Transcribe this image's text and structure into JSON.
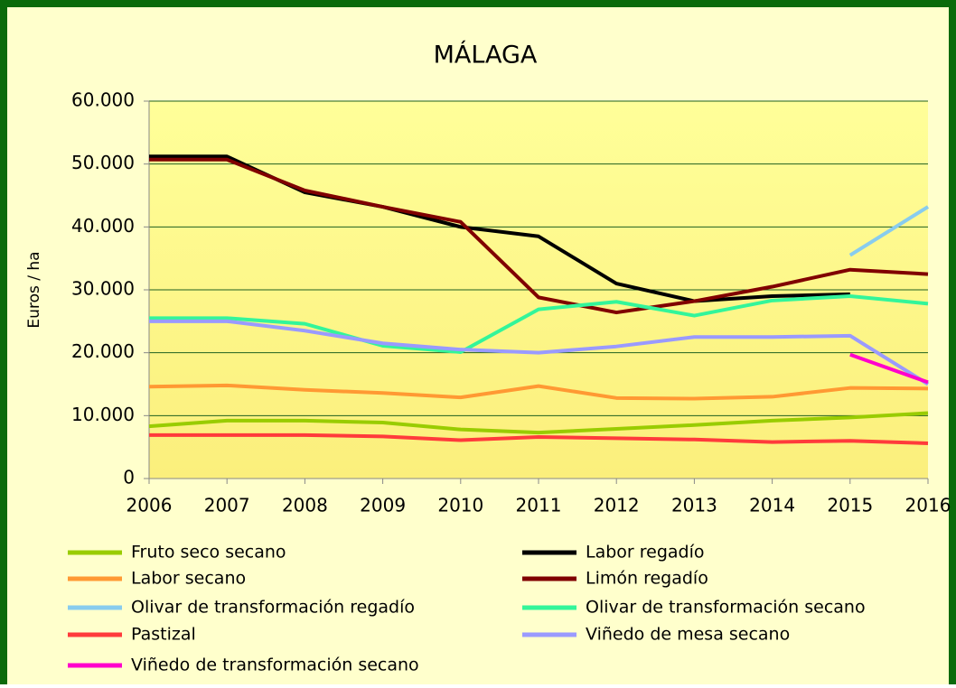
{
  "chart_data": {
    "type": "line",
    "title": "MÁLAGA",
    "ylabel": "Euros / ha",
    "x": [
      2006,
      2007,
      2008,
      2009,
      2010,
      2011,
      2012,
      2013,
      2014,
      2015,
      2016
    ],
    "xlim": [
      2006,
      2016
    ],
    "xticks": [
      2006,
      2007,
      2008,
      2009,
      2010,
      2011,
      2012,
      2013,
      2014,
      2015,
      2016
    ],
    "ylim": [
      0,
      60000
    ],
    "yticks": [
      0,
      {
        "value": 10000,
        "label": "10.000"
      },
      {
        "value": 20000,
        "label": "20.000"
      },
      {
        "value": 30000,
        "label": "30.000"
      },
      {
        "value": 40000,
        "label": "40.000"
      },
      {
        "value": 50000,
        "label": "50.000"
      },
      {
        "value": 60000,
        "label": "60.000"
      }
    ],
    "grid": true,
    "legend": "bottom",
    "series": [
      {
        "name": "Fruto seco secano",
        "color": "#99cc00",
        "values": [
          8300,
          9200,
          9200,
          8900,
          7800,
          7300,
          7900,
          8500,
          9200,
          9700,
          10400
        ]
      },
      {
        "name": "Labor regadío",
        "color": "#000000",
        "values": [
          51200,
          51200,
          45500,
          43200,
          40000,
          38500,
          31000,
          28200,
          29000,
          29300,
          null
        ]
      },
      {
        "name": "Labor secano",
        "color": "#ff9933",
        "values": [
          14600,
          14800,
          14100,
          13600,
          12900,
          14700,
          12800,
          12700,
          13000,
          14400,
          14300
        ]
      },
      {
        "name": "Limón regadío",
        "color": "#800000",
        "values": [
          50700,
          50700,
          45800,
          43200,
          40800,
          28800,
          26400,
          28200,
          30500,
          33200,
          32500
        ]
      },
      {
        "name": "Olivar de transformación regadío",
        "color": "#88ccee",
        "values": [
          null,
          null,
          null,
          null,
          null,
          null,
          null,
          null,
          null,
          35500,
          43200
        ]
      },
      {
        "name": "Olivar de transformación secano",
        "color": "#33f59a",
        "values": [
          25500,
          25500,
          24600,
          21100,
          20100,
          26900,
          28100,
          25900,
          28300,
          29000,
          27800
        ]
      },
      {
        "name": "Pastizal",
        "color": "#ff3b3b",
        "values": [
          6900,
          6900,
          6900,
          6700,
          6100,
          6600,
          6400,
          6200,
          5800,
          6000,
          5600
        ]
      },
      {
        "name": "Viñedo de mesa secano",
        "color": "#9a9aff",
        "values": [
          25000,
          25000,
          23500,
          21500,
          20500,
          20000,
          21000,
          22500,
          22500,
          22700,
          15000
        ]
      },
      {
        "name": "Viñedo de transformación secano",
        "color": "#ff00cc",
        "values": [
          null,
          null,
          null,
          null,
          null,
          null,
          null,
          null,
          null,
          19700,
          15300
        ]
      }
    ]
  }
}
